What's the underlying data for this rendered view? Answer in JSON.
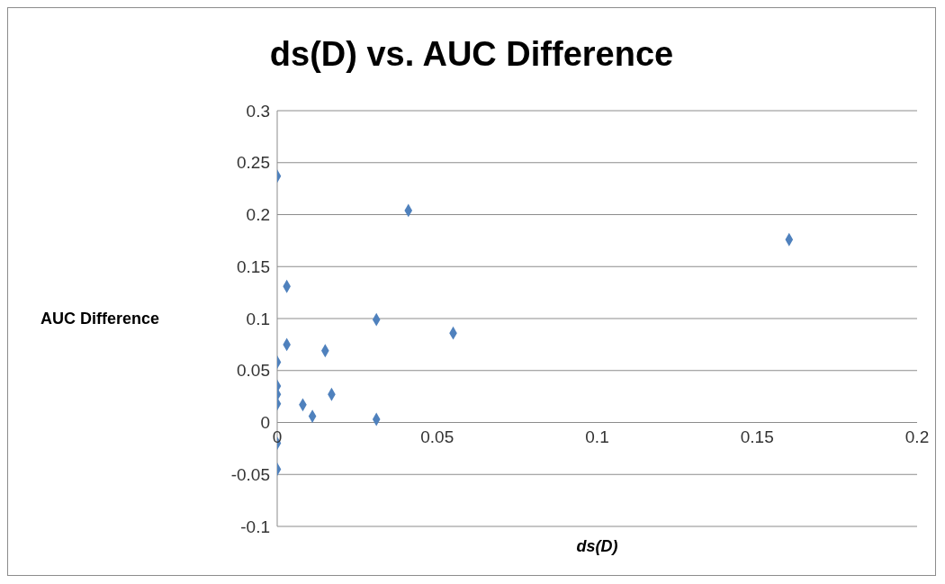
{
  "chart_data": {
    "type": "scatter",
    "title": "ds(D) vs. AUC Difference",
    "xlabel": "ds(D)",
    "ylabel": "AUC Difference",
    "series": [
      {
        "color": "#4f81bd",
        "x": [
          0,
          0.041,
          0.16,
          0.003,
          0.031,
          0.055,
          0.003,
          0.015,
          0,
          0,
          0,
          0.017,
          0,
          0.008,
          0.011,
          0.031,
          0,
          0
        ],
        "values": [
          0.237,
          0.204,
          0.176,
          0.131,
          0.099,
          0.086,
          0.075,
          0.069,
          0.058,
          0.035,
          0.027,
          0.027,
          0.018,
          0.017,
          0.006,
          0.003,
          -0.02,
          -0.045
        ]
      }
    ],
    "xlim": [
      0,
      0.2
    ],
    "xticks": [
      0,
      0.05,
      0.1,
      0.15,
      0.2
    ],
    "ylim": [
      -0.1,
      0.3
    ],
    "yticks": [
      -0.1,
      -0.05,
      0,
      0.05,
      0.1,
      0.15,
      0.2,
      0.25,
      0.3
    ],
    "grid": "y",
    "legend": false,
    "marker": "diamond"
  }
}
